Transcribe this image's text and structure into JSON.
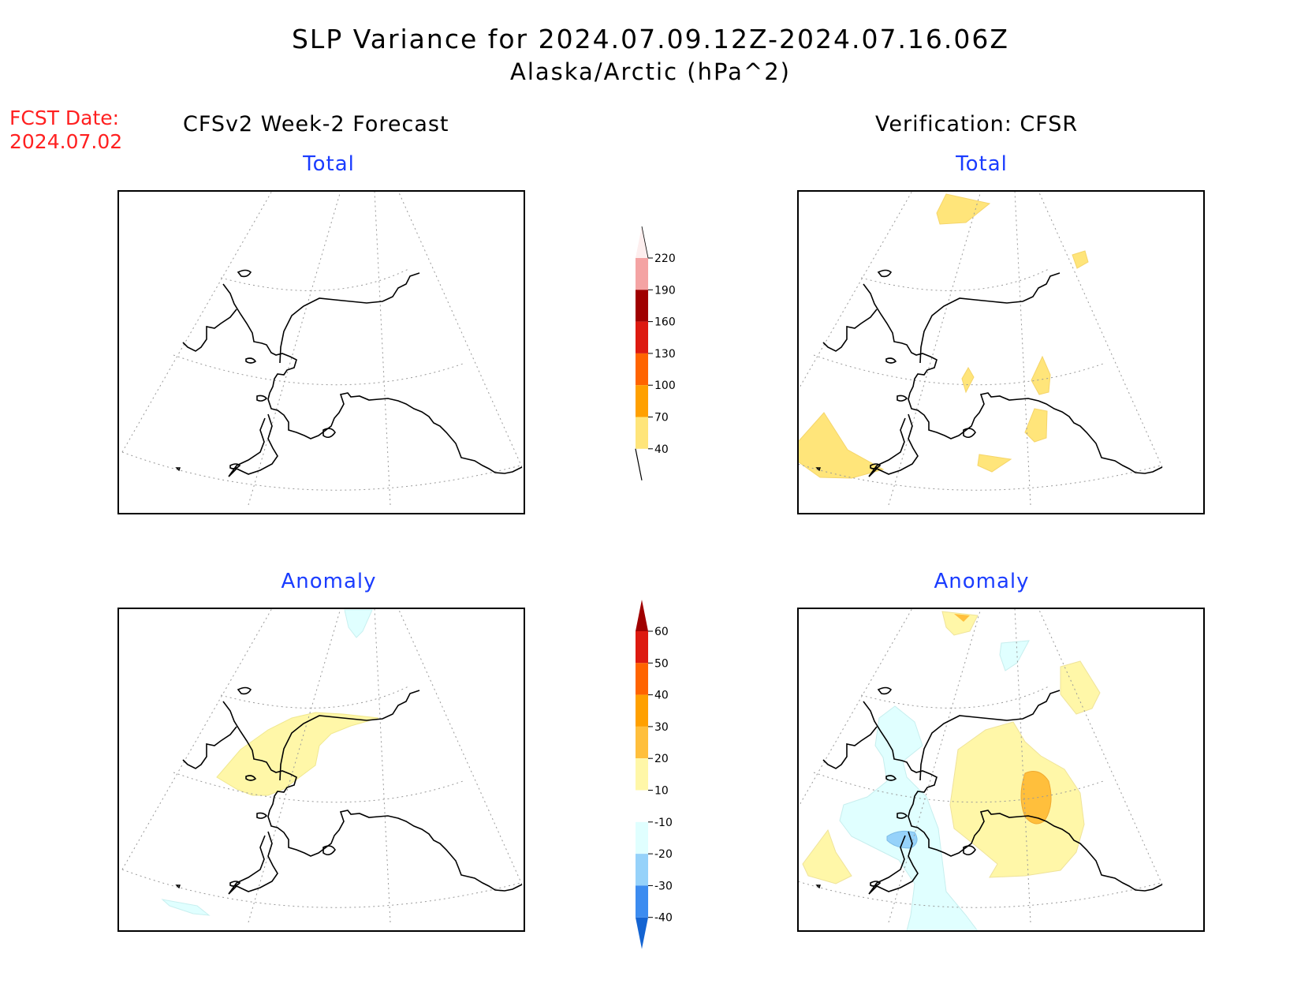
{
  "title": {
    "line1": "SLP Variance for 2024.07.09.12Z-2024.07.16.06Z",
    "line2": "Alaska/Arctic (hPa^2)"
  },
  "forecast_date": {
    "label": "FCST Date:",
    "value": "2024.07.02"
  },
  "columns": {
    "left": "CFSv2 Week-2 Forecast",
    "right": "Verification: CFSR"
  },
  "panels": {
    "top_left": "Total",
    "top_right": "Total",
    "bottom_left": "Anomaly",
    "bottom_right": "Anomaly"
  },
  "total_colorbar": {
    "labels": [
      "220",
      "190",
      "160",
      "130",
      "100",
      "70",
      "40"
    ],
    "colors": [
      "#fdeeee",
      "#f4a3a3",
      "#a00000",
      "#dd1a10",
      "#ff6400",
      "#ffa000",
      "#ffe57a"
    ]
  },
  "anomaly_colorbar": {
    "labels": [
      "60",
      "50",
      "40",
      "30",
      "20",
      "10",
      "-10",
      "-20",
      "-30",
      "-40"
    ],
    "colors": [
      "#a00000",
      "#dd1a10",
      "#ff6400",
      "#ffa000",
      "#ffbf3c",
      "#fff7a8",
      "#ffffff",
      "#e0ffff",
      "#96d2fa",
      "#3c8cf0",
      "#1464d2"
    ]
  },
  "shading_colors": {
    "light_yellow": "#ffe57a",
    "pale_yellow": "#fff7a8",
    "orange": "#ffbf3c",
    "light_cyan": "#e0ffff",
    "blue": "#96d2fa"
  }
}
